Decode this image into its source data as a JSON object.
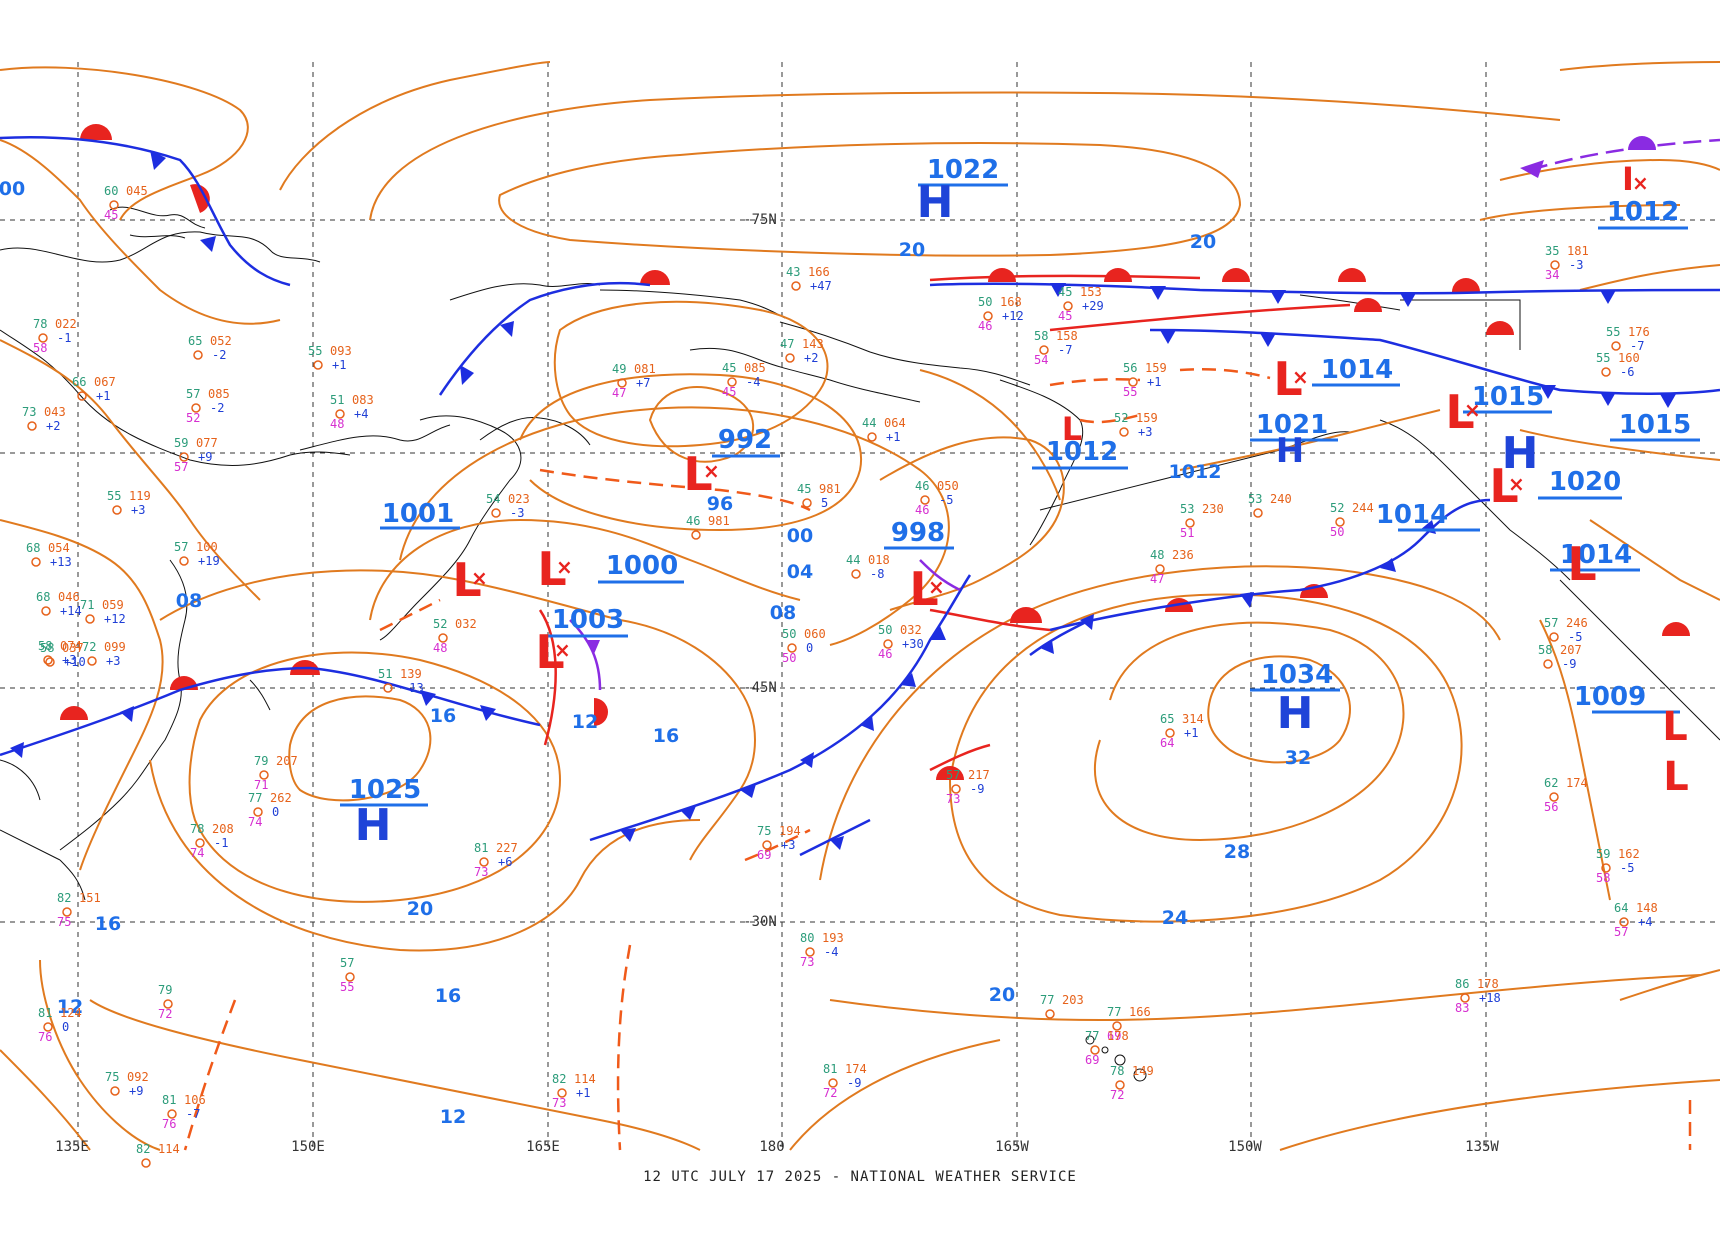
{
  "footer": "12 UTC JULY 17 2025 - NATIONAL WEATHER SERVICE",
  "colors": {
    "isobar": "#e07a1f",
    "cold_front": "#1d2ee0",
    "warm_front": "#e8241f",
    "occluded": "#8a2be2",
    "trough": "#f05a1a",
    "grid": "#333333",
    "high": "#1f44d8",
    "low": "#e8241f",
    "iso_label": "#1f6fe8"
  },
  "lon_labels": [
    {
      "text": "135E"
    },
    {
      "text": "150E"
    },
    {
      "text": "165E"
    },
    {
      "text": "180"
    },
    {
      "text": "165W"
    },
    {
      "text": "150W"
    },
    {
      "text": "135W"
    }
  ],
  "lat_labels": [
    {
      "text": "-75N"
    },
    {
      "text": "-45N"
    },
    {
      "text": "-30N"
    }
  ],
  "highs": [
    {
      "value": "1022"
    },
    {
      "value": "1025"
    },
    {
      "value": "1034"
    },
    {
      "value": "1021"
    },
    {
      "value": "1015"
    }
  ],
  "lows": [
    {
      "value": "992"
    },
    {
      "value": "1001"
    },
    {
      "value": "1000"
    },
    {
      "value": "1003"
    },
    {
      "value": "998"
    },
    {
      "value": "1012"
    },
    {
      "value": "1014"
    },
    {
      "value": "1014"
    },
    {
      "value": "1020"
    },
    {
      "value": "1014"
    },
    {
      "value": "1009"
    },
    {
      "value": "1012"
    },
    {
      "value": "1015"
    }
  ],
  "isobar_labels": [
    "20",
    "20",
    "96",
    "00",
    "04",
    "08",
    "16",
    "12",
    "16",
    "20",
    "16",
    "12",
    "12",
    "16",
    "28",
    "32",
    "24",
    "20",
    "08",
    "1012",
    "00"
  ],
  "stations": [
    {
      "t": "60",
      "p": "045",
      "d": "45"
    },
    {
      "t": "65",
      "p": "052",
      "x": "-2"
    },
    {
      "t": "55",
      "p": "093",
      "x": "+1"
    },
    {
      "t": "57",
      "p": "085",
      "x": "-2",
      "d": "52"
    },
    {
      "t": "51",
      "p": "083",
      "x": "+4",
      "d": "48"
    },
    {
      "t": "59",
      "p": "077",
      "x": "+9",
      "d": "57"
    },
    {
      "t": "55",
      "p": "119",
      "x": "+3"
    },
    {
      "t": "66",
      "p": "067",
      "x": "+1"
    },
    {
      "t": "73",
      "p": "043",
      "x": "+2"
    },
    {
      "t": "49",
      "p": "081",
      "x": "+7",
      "d": "47"
    },
    {
      "t": "45",
      "p": "085",
      "x": "-4",
      "d": "45"
    },
    {
      "t": "47",
      "p": "143",
      "x": "+2"
    },
    {
      "t": "43",
      "p": "166",
      "x": "+47"
    },
    {
      "t": "44",
      "p": "064",
      "x": "+1"
    },
    {
      "t": "46",
      "p": "050",
      "x": "-5",
      "d": "46"
    },
    {
      "t": "50",
      "p": "168",
      "x": "+12",
      "d": "46"
    },
    {
      "t": "45",
      "p": "153",
      "x": "+29",
      "d": "45"
    },
    {
      "t": "58",
      "p": "158",
      "x": "-7",
      "d": "54"
    },
    {
      "t": "56",
      "p": "159",
      "x": "+1",
      "d": "55"
    },
    {
      "t": "52",
      "p": "159",
      "x": "+3"
    },
    {
      "t": "53",
      "p": "230",
      "d": "51"
    },
    {
      "t": "53",
      "p": "240"
    },
    {
      "t": "52",
      "p": "244",
      "d": "50"
    },
    {
      "t": "48",
      "p": "236",
      "d": "47"
    },
    {
      "t": "45",
      "p": "981",
      "x": "5"
    },
    {
      "t": "46",
      "p": "981"
    },
    {
      "t": "44",
      "p": "018",
      "x": "-8"
    },
    {
      "t": "50",
      "p": "032",
      "x": "+30",
      "d": "46"
    },
    {
      "t": "50",
      "p": "060",
      "x": "0",
      "d": "50"
    },
    {
      "t": "52",
      "p": "032",
      "d": "48"
    },
    {
      "t": "54",
      "p": "023",
      "x": "-3"
    },
    {
      "t": "51",
      "p": "139",
      "x": "-13"
    },
    {
      "t": "65",
      "p": "314",
      "x": "+1",
      "d": "64"
    },
    {
      "t": "75",
      "p": "194",
      "x": "+3",
      "d": "69"
    },
    {
      "t": "80",
      "p": "193",
      "x": "-4",
      "d": "73"
    },
    {
      "t": "81",
      "p": "227",
      "x": "+6",
      "d": "73"
    },
    {
      "t": "79",
      "p": "207",
      "d": "71"
    },
    {
      "t": "77",
      "p": "262",
      "x": "0",
      "d": "74"
    },
    {
      "t": "78",
      "p": "208",
      "x": "-1",
      "d": "74"
    },
    {
      "t": "82",
      "p": "151",
      "d": "75"
    },
    {
      "t": "81",
      "p": "124",
      "x": "0",
      "d": "76"
    },
    {
      "t": "81",
      "p": "174",
      "x": "-9",
      "d": "72"
    },
    {
      "t": "82",
      "p": "114",
      "x": "+1",
      "d": "73"
    },
    {
      "t": "77",
      "p": "166",
      "d": "69"
    },
    {
      "t": "77",
      "p": "178",
      "d": "69"
    },
    {
      "t": "78",
      "p": "149",
      "d": "72"
    },
    {
      "t": "77",
      "p": "203"
    },
    {
      "t": "86",
      "p": "178",
      "x": "+18",
      "d": "83"
    },
    {
      "t": "59",
      "p": "162",
      "x": "-5",
      "d": "58"
    },
    {
      "t": "64",
      "p": "148",
      "x": "+4",
      "d": "57"
    },
    {
      "t": "62",
      "p": "174",
      "d": "56"
    },
    {
      "t": "55",
      "p": "176",
      "x": "-7"
    },
    {
      "t": "55",
      "p": "160",
      "x": "-6"
    },
    {
      "t": "35",
      "p": "181",
      "x": "-3",
      "d": "34"
    },
    {
      "t": "57",
      "p": "246",
      "x": "-5"
    },
    {
      "t": "58",
      "p": "207",
      "x": "-9"
    },
    {
      "t": "57",
      "p": "217",
      "x": "-9",
      "d": "73"
    },
    {
      "t": "75",
      "p": "092",
      "x": "+9"
    },
    {
      "t": "81",
      "p": "106",
      "x": "-7",
      "d": "76"
    },
    {
      "t": "82",
      "p": "114"
    },
    {
      "t": "79",
      "d": "72"
    },
    {
      "t": "57",
      "d": "55"
    },
    {
      "t": "68",
      "p": "054",
      "x": "+13"
    },
    {
      "t": "71",
      "p": "059",
      "x": "+12"
    },
    {
      "t": "58",
      "p": "074",
      "x": "+3"
    },
    {
      "t": "72",
      "p": "099",
      "x": "+3"
    },
    {
      "t": "78",
      "p": "022",
      "x": "-1",
      "d": "58"
    },
    {
      "t": "68",
      "p": "046",
      "x": "+14"
    },
    {
      "t": "58",
      "p": "037",
      "x": "+10"
    },
    {
      "t": "57",
      "p": "100",
      "x": "+19"
    }
  ]
}
